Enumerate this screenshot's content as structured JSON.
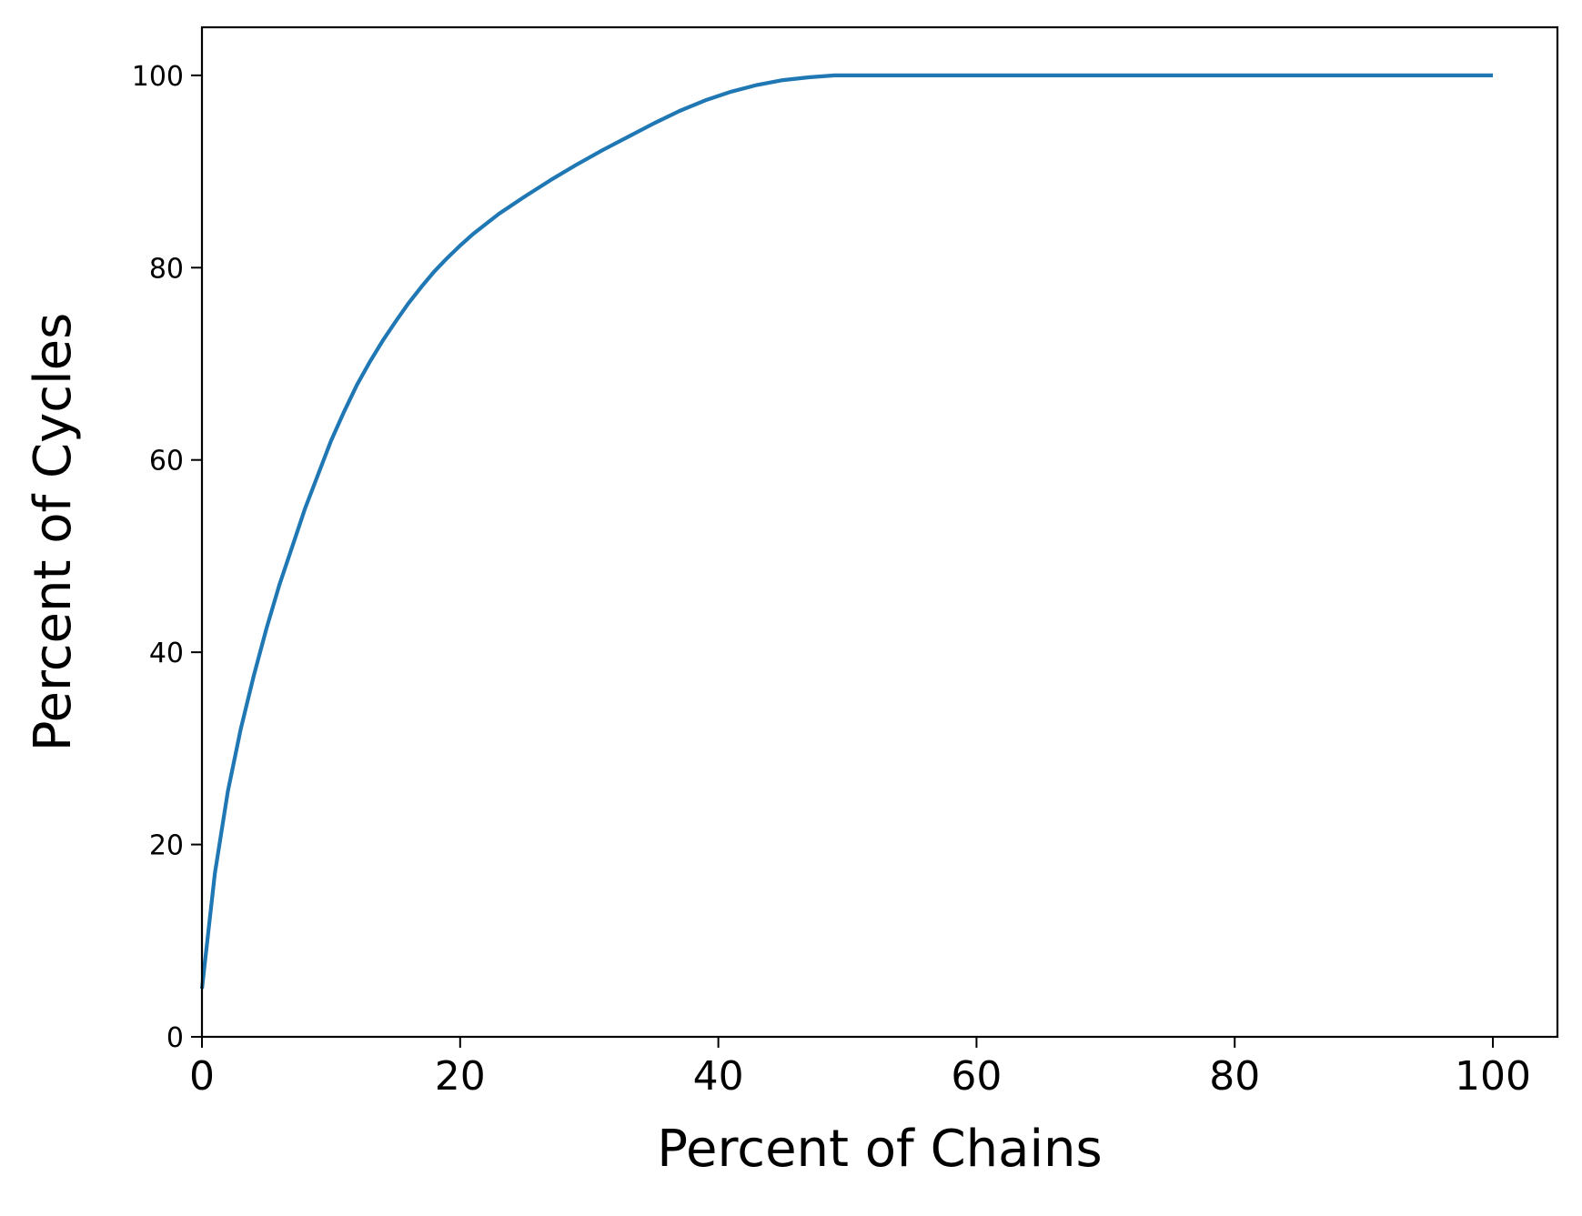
{
  "chart_data": {
    "type": "line",
    "title": "",
    "xlabel": "Percent of Chains",
    "ylabel": "Percent of Cycles",
    "xlim": [
      0,
      105
    ],
    "ylim": [
      0,
      105
    ],
    "xticks": [
      0,
      20,
      40,
      60,
      80,
      100
    ],
    "yticks": [
      0,
      20,
      40,
      60,
      80,
      100
    ],
    "grid": false,
    "legend": "none",
    "colors": {
      "line": "#1f77b4",
      "axes": "#000000",
      "background": "#ffffff"
    },
    "series": [
      {
        "x": [
          0,
          1,
          2,
          3,
          4,
          5,
          6,
          7,
          8,
          9,
          10,
          11,
          12,
          13,
          14,
          15,
          16,
          17,
          18,
          19,
          20,
          21,
          23,
          25,
          27,
          29,
          31,
          33,
          35,
          37,
          39,
          41,
          43,
          45,
          47,
          49,
          50,
          60,
          70,
          80,
          90,
          100
        ],
        "y": [
          5,
          17,
          25.5,
          32,
          37.5,
          42.5,
          47,
          51,
          55,
          58.5,
          62,
          65,
          67.8,
          70.2,
          72.4,
          74.4,
          76.3,
          78,
          79.6,
          81,
          82.3,
          83.5,
          85.6,
          87.4,
          89.1,
          90.7,
          92.2,
          93.6,
          95,
          96.3,
          97.4,
          98.3,
          99,
          99.5,
          99.8,
          100,
          100,
          100,
          100,
          100,
          100,
          100
        ]
      }
    ]
  }
}
